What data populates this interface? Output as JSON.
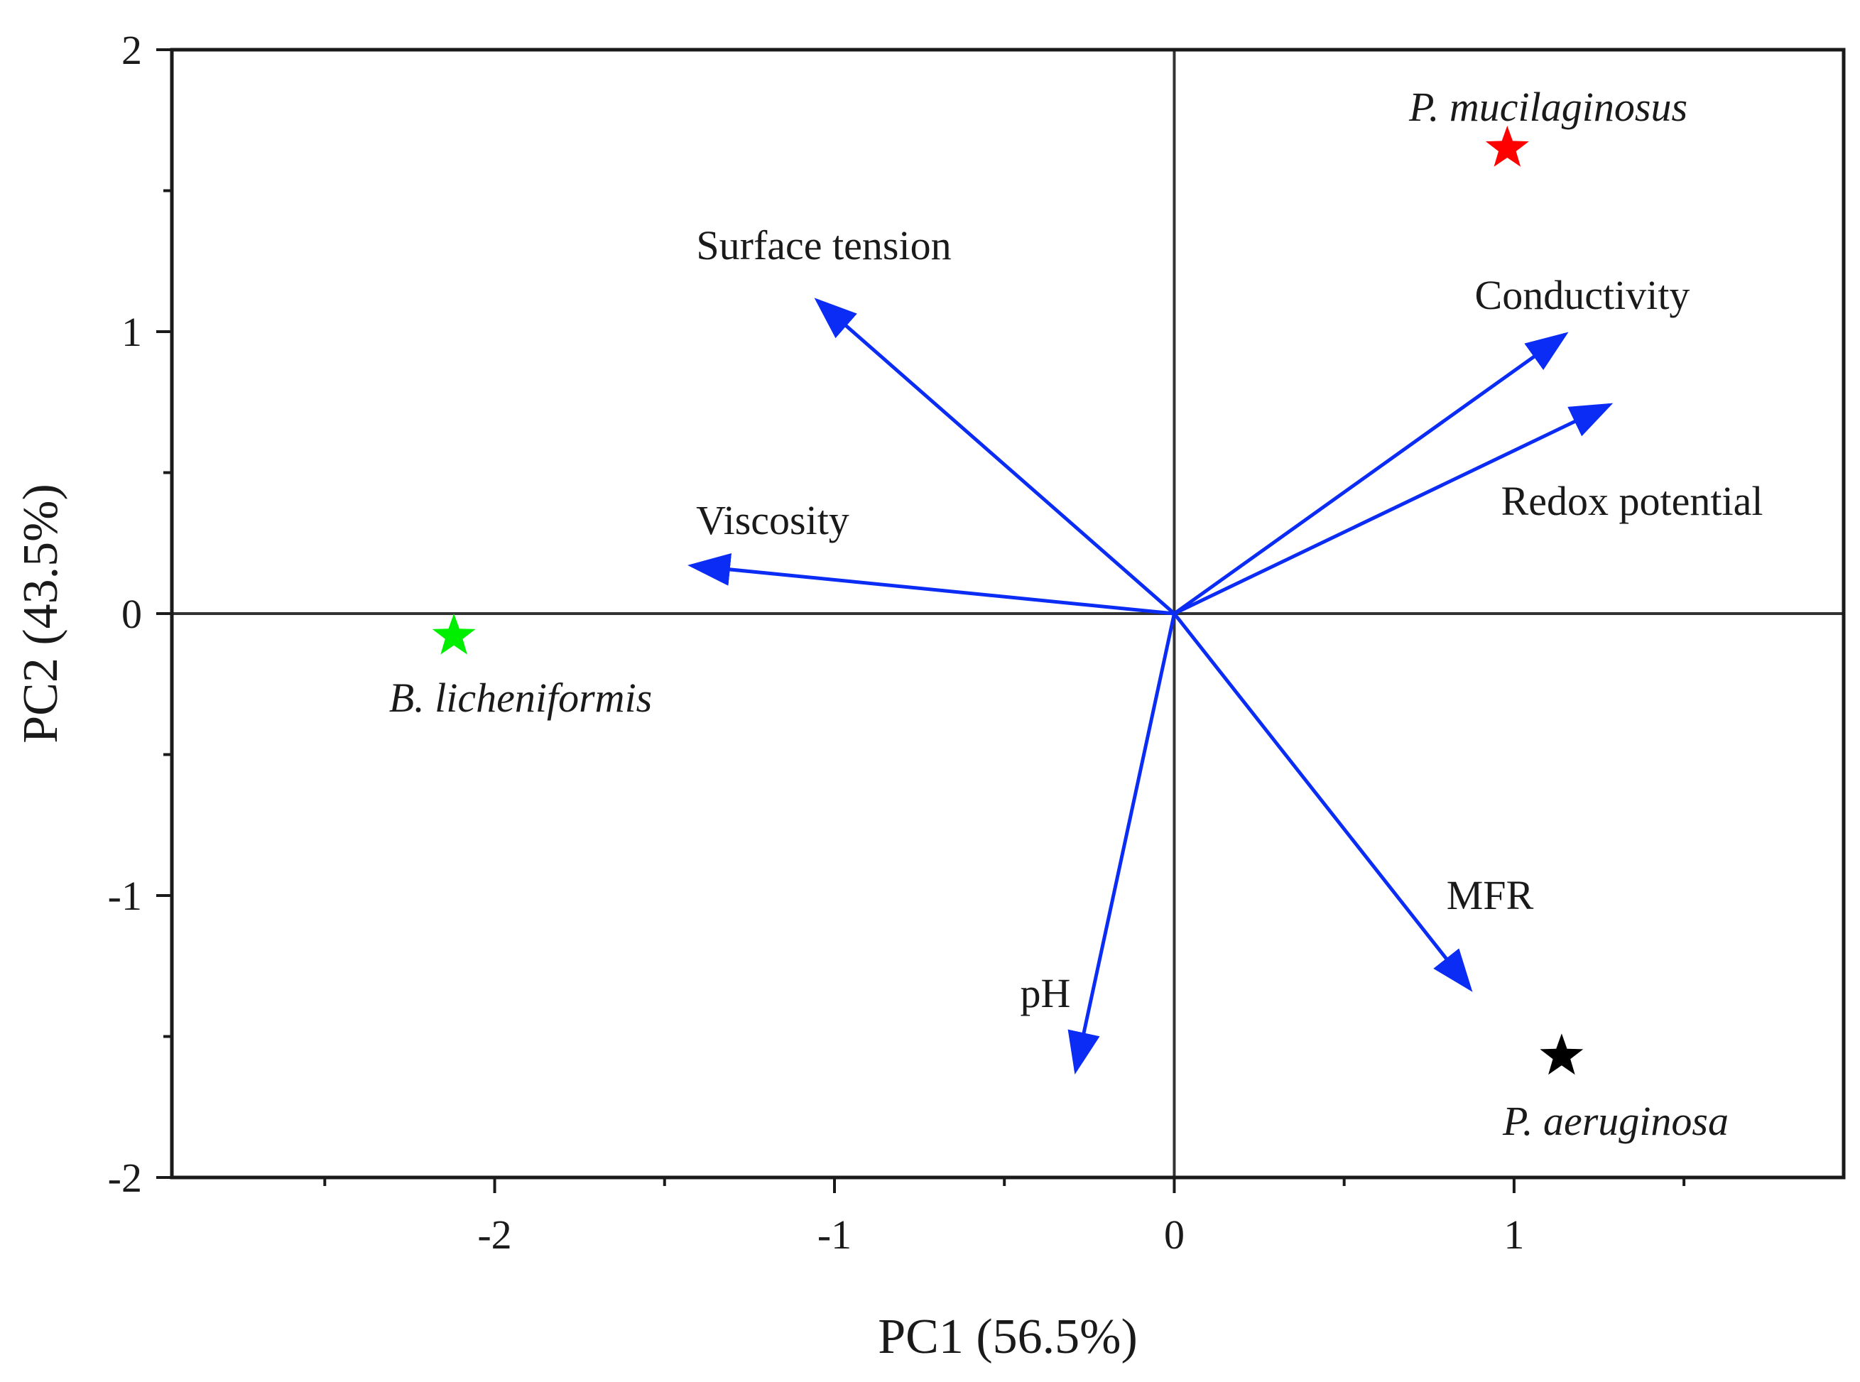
{
  "chart_data": {
    "type": "scatter",
    "subtype": "pca-biplot",
    "title": "",
    "xlabel": "PC1 (56.5%)",
    "ylabel": "PC2 (43.5%)",
    "xlim": [
      -2.95,
      1.97
    ],
    "ylim": [
      -2,
      2
    ],
    "x_ticks": [
      -2,
      -1,
      0,
      1
    ],
    "y_ticks": [
      -2,
      -1,
      0,
      1,
      2
    ],
    "x_tick_labels": [
      "-2",
      "-1",
      "0",
      "1"
    ],
    "y_tick_labels": [
      "-2",
      "-1",
      "0",
      "1",
      "2"
    ],
    "grid": false,
    "zero_lines": true,
    "arrow_color": "#0a2cf5",
    "loadings": [
      {
        "name": "Surface tension",
        "x": -1.05,
        "y": 1.11
      },
      {
        "name": "Conductivity",
        "x": 1.15,
        "y": 0.99
      },
      {
        "name": "Redox potential",
        "x": 1.28,
        "y": 0.74
      },
      {
        "name": "Viscosity",
        "x": -1.42,
        "y": 0.17
      },
      {
        "name": "MFR",
        "x": 0.87,
        "y": -1.33
      },
      {
        "name": "pH",
        "x": -0.29,
        "y": -1.62
      }
    ],
    "samples": [
      {
        "name": "P. mucilaginosus",
        "x": 0.98,
        "y": 1.65,
        "color": "#ff0000"
      },
      {
        "name": "B. licheniformis",
        "x": -2.12,
        "y": -0.08,
        "color": "#00ee00"
      },
      {
        "name": "P. aeruginosa",
        "x": 1.14,
        "y": -1.57,
        "color": "#000000"
      }
    ]
  }
}
